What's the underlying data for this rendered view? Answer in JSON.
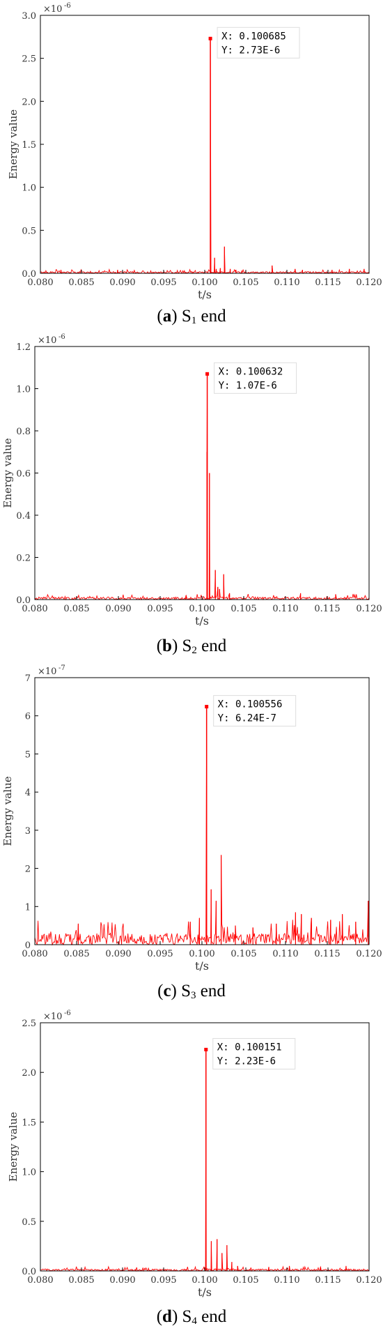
{
  "charts_color": "#ff0000",
  "chart_data": [
    {
      "type": "line",
      "caption_letter": "a",
      "caption_s": "S",
      "caption_sub": "1",
      "caption_rest": " end",
      "xlabel": "t/s",
      "ylabel": "Energy value",
      "scale_label": "×10",
      "scale_exp": "-6",
      "xlim": [
        0.08,
        0.12
      ],
      "ylim": [
        0,
        3.0
      ],
      "xticks": [
        "0.080",
        "0.085",
        "0.090",
        "0.095",
        "0.100",
        "0.105",
        "0.110",
        "0.115",
        "0.120"
      ],
      "yticks": [
        "0.0",
        "0.5",
        "1.0",
        "1.5",
        "2.0",
        "2.5",
        "3.0"
      ],
      "annotation": {
        "x_text": "X: 0.100685",
        "y_text": "Y: 2.73E-6",
        "x": 0.100685,
        "y": 2.73
      },
      "spikes": [
        [
          0.1012,
          0.18
        ],
        [
          0.1014,
          0.05
        ],
        [
          0.1019,
          0.06
        ],
        [
          0.1024,
          0.31
        ],
        [
          0.1031,
          0.05
        ],
        [
          0.1038,
          0.04
        ],
        [
          0.1045,
          0.03
        ],
        [
          0.1082,
          0.09
        ],
        [
          0.111,
          0.05
        ],
        [
          0.1119,
          0.04
        ],
        [
          0.1155,
          0.04
        ],
        [
          0.1176,
          0.05
        ],
        [
          0.1194,
          0.05
        ],
        [
          0.0825,
          0.04
        ],
        [
          0.0894,
          0.04
        ]
      ],
      "noise_level": 0.02
    },
    {
      "type": "line",
      "caption_letter": "b",
      "caption_s": "S",
      "caption_sub": "2",
      "caption_rest": " end",
      "xlabel": "t/s",
      "ylabel": "Energy value",
      "scale_label": "×10",
      "scale_exp": "-6",
      "xlim": [
        0.08,
        0.12
      ],
      "ylim": [
        0,
        1.2
      ],
      "xticks": [
        "0.080",
        "0.085",
        "0.090",
        "0.095",
        "0.100",
        "0.105",
        "0.110",
        "0.115",
        "0.120"
      ],
      "yticks": [
        "0.0",
        "0.2",
        "0.4",
        "0.6",
        "0.8",
        "1.0",
        "1.2"
      ],
      "annotation": {
        "x_text": "X: 0.100632",
        "y_text": "Y: 1.07E-6",
        "x": 0.100632,
        "y": 1.07
      },
      "spikes": [
        [
          0.1006,
          0.7
        ],
        [
          0.1009,
          0.6
        ],
        [
          0.1016,
          0.14
        ],
        [
          0.1019,
          0.06
        ],
        [
          0.1021,
          0.05
        ],
        [
          0.1026,
          0.12
        ],
        [
          0.1033,
          0.03
        ],
        [
          0.0981,
          0.02
        ],
        [
          0.1118,
          0.03
        ],
        [
          0.116,
          0.025
        ]
      ],
      "noise_level": 0.012
    },
    {
      "type": "line",
      "caption_letter": "c",
      "caption_s": "S",
      "caption_sub": "3",
      "caption_rest": " end",
      "xlabel": "t/s",
      "ylabel": "Energy value",
      "scale_label": "×10",
      "scale_exp": "-7",
      "xlim": [
        0.08,
        0.12
      ],
      "ylim": [
        0,
        7
      ],
      "xticks": [
        "0.080",
        "0.085",
        "0.090",
        "0.095",
        "0.100",
        "0.105",
        "0.110",
        "0.115",
        "0.120"
      ],
      "yticks": [
        "0",
        "1",
        "2",
        "3",
        "4",
        "5",
        "6",
        "7"
      ],
      "annotation": {
        "x_text": "X: 0.100556",
        "y_text": "Y: 6.24E-7",
        "x": 0.100556,
        "y": 6.24
      },
      "spikes": [
        [
          0.1011,
          1.45
        ],
        [
          0.1017,
          1.15
        ],
        [
          0.1023,
          2.35
        ],
        [
          0.0986,
          0.6
        ],
        [
          0.0997,
          0.7
        ],
        [
          0.0852,
          0.55
        ],
        [
          0.1112,
          0.85
        ],
        [
          0.1119,
          0.8
        ],
        [
          0.1131,
          0.7
        ],
        [
          0.1154,
          0.65
        ],
        [
          0.1168,
          0.8
        ],
        [
          0.1184,
          0.6
        ],
        [
          0.1199,
          1.15
        ],
        [
          0.104,
          0.5
        ],
        [
          0.1061,
          0.45
        ],
        [
          0.1089,
          0.55
        ]
      ],
      "noise_level": 0.3
    },
    {
      "type": "line",
      "caption_letter": "d",
      "caption_s": "S",
      "caption_sub": "4",
      "caption_rest": " end",
      "xlabel": "t/s",
      "ylabel": "Energy value",
      "scale_label": "×10",
      "scale_exp": "-6",
      "xlim": [
        0.08,
        0.12
      ],
      "ylim": [
        0,
        2.5
      ],
      "xticks": [
        "0.080",
        "0.085",
        "0.090",
        "0.095",
        "0.100",
        "0.105",
        "0.110",
        "0.115",
        "0.120"
      ],
      "yticks": [
        "0.0",
        "0.5",
        "1.0",
        "1.5",
        "2.0",
        "2.5"
      ],
      "annotation": {
        "x_text": "X: 0.100151",
        "y_text": "Y: 2.23E-6",
        "x": 0.100151,
        "y": 2.23
      },
      "spikes": [
        [
          0.1008,
          0.3
        ],
        [
          0.1015,
          0.32
        ],
        [
          0.1021,
          0.18
        ],
        [
          0.1027,
          0.26
        ],
        [
          0.1033,
          0.09
        ],
        [
          0.104,
          0.05
        ],
        [
          0.1078,
          0.04
        ],
        [
          0.1103,
          0.05
        ],
        [
          0.1141,
          0.04
        ],
        [
          0.1172,
          0.05
        ]
      ],
      "noise_level": 0.02
    }
  ]
}
